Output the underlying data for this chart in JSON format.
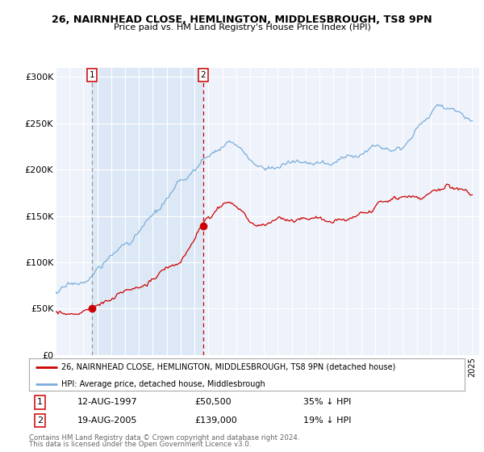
{
  "title_line1": "26, NAIRNHEAD CLOSE, HEMLINGTON, MIDDLESBROUGH, TS8 9PN",
  "title_line2": "Price paid vs. HM Land Registry's House Price Index (HPI)",
  "legend_label_red": "26, NAIRNHEAD CLOSE, HEMLINGTON, MIDDLESBROUGH, TS8 9PN (detached house)",
  "legend_label_blue": "HPI: Average price, detached house, Middlesbrough",
  "sale1_date": "12-AUG-1997",
  "sale1_price": 50500,
  "sale1_label": "35% ↓ HPI",
  "sale2_date": "19-AUG-2005",
  "sale2_price": 139000,
  "sale2_label": "19% ↓ HPI",
  "footnote1": "Contains HM Land Registry data © Crown copyright and database right 2024.",
  "footnote2": "This data is licensed under the Open Government Licence v3.0.",
  "yticks": [
    0,
    50000,
    100000,
    150000,
    200000,
    250000,
    300000
  ],
  "ytick_labels": [
    "£0",
    "£50K",
    "£100K",
    "£150K",
    "£200K",
    "£250K",
    "£300K"
  ],
  "red_color": "#cc0000",
  "blue_color": "#7aaddc",
  "vline1_color": "#aaaaaa",
  "vline2_color": "#cc0000",
  "shade_color": "#dce8f5",
  "background_color": "#eef2fa",
  "grid_color": "#ffffff",
  "sale1_year": 1997.62,
  "sale2_year": 2005.62
}
